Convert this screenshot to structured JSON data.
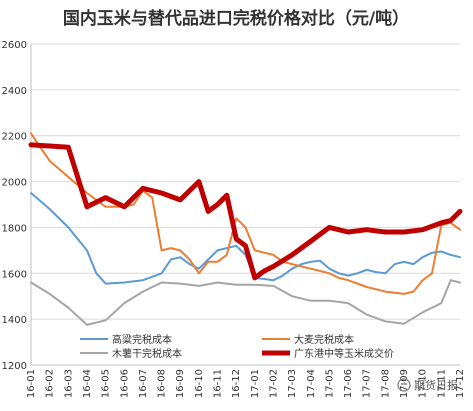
{
  "chart_data": {
    "type": "line",
    "title": "国内玉米与替代品进口完税价格对比（元/吨）",
    "xlabel": "",
    "ylabel": "",
    "ylim": [
      1200,
      2600
    ],
    "yticks": [
      1200,
      1400,
      1600,
      1800,
      2000,
      2200,
      2400,
      2600
    ],
    "grid": true,
    "legend_position": "bottom-inside",
    "categories": [
      "16-01",
      "16-02",
      "16-03",
      "16-04",
      "16-05",
      "16-06",
      "16-07",
      "16-08",
      "16-09",
      "16-10",
      "16-11",
      "16-12",
      "17-01",
      "17-02",
      "17-03",
      "17-04",
      "17-05",
      "17-06",
      "17-07",
      "17-08",
      "17-09",
      "17-10",
      "17-11",
      "17-12"
    ],
    "series": [
      {
        "name": "高粱完税成本",
        "color": "#5b9bd5",
        "width": 2,
        "values": [
          [
            0,
            1950
          ],
          [
            1,
            1880
          ],
          [
            2,
            1800
          ],
          [
            3,
            1700
          ],
          [
            3.5,
            1600
          ],
          [
            4,
            1555
          ],
          [
            5,
            1560
          ],
          [
            6,
            1570
          ],
          [
            7,
            1600
          ],
          [
            7.5,
            1660
          ],
          [
            8,
            1670
          ],
          [
            8.5,
            1640
          ],
          [
            9,
            1620
          ],
          [
            9.5,
            1660
          ],
          [
            10,
            1700
          ],
          [
            11,
            1720
          ],
          [
            11.5,
            1680
          ],
          [
            12,
            1580
          ],
          [
            12.5,
            1575
          ],
          [
            13,
            1570
          ],
          [
            13.5,
            1590
          ],
          [
            14,
            1620
          ],
          [
            14.5,
            1640
          ],
          [
            15,
            1650
          ],
          [
            15.5,
            1655
          ],
          [
            16,
            1620
          ],
          [
            16.5,
            1600
          ],
          [
            17,
            1590
          ],
          [
            17.5,
            1600
          ],
          [
            18,
            1615
          ],
          [
            18.5,
            1605
          ],
          [
            19,
            1600
          ],
          [
            19.5,
            1640
          ],
          [
            20,
            1650
          ],
          [
            20.5,
            1640
          ],
          [
            21,
            1670
          ],
          [
            21.5,
            1690
          ],
          [
            22,
            1695
          ],
          [
            22.5,
            1680
          ],
          [
            23,
            1670
          ]
        ]
      },
      {
        "name": "大麦完税成本",
        "color": "#ed7d31",
        "width": 2,
        "values": [
          [
            0,
            2210
          ],
          [
            0.5,
            2150
          ],
          [
            1,
            2090
          ],
          [
            2,
            2020
          ],
          [
            3,
            1950
          ],
          [
            3.5,
            1920
          ],
          [
            4,
            1890
          ],
          [
            5,
            1890
          ],
          [
            5.5,
            1900
          ],
          [
            6,
            1960
          ],
          [
            6.5,
            1930
          ],
          [
            7,
            1700
          ],
          [
            7.5,
            1710
          ],
          [
            8,
            1700
          ],
          [
            8.5,
            1660
          ],
          [
            9,
            1600
          ],
          [
            9.5,
            1650
          ],
          [
            10,
            1650
          ],
          [
            10.5,
            1680
          ],
          [
            11,
            1840
          ],
          [
            11.5,
            1800
          ],
          [
            12,
            1700
          ],
          [
            12.5,
            1690
          ],
          [
            13,
            1680
          ],
          [
            13.5,
            1650
          ],
          [
            14,
            1640
          ],
          [
            15,
            1620
          ],
          [
            15.5,
            1610
          ],
          [
            16,
            1600
          ],
          [
            16.5,
            1580
          ],
          [
            17,
            1570
          ],
          [
            18,
            1540
          ],
          [
            18.5,
            1530
          ],
          [
            19,
            1520
          ],
          [
            20,
            1510
          ],
          [
            20.5,
            1520
          ],
          [
            21,
            1570
          ],
          [
            21.5,
            1600
          ],
          [
            22,
            1810
          ],
          [
            22.5,
            1820
          ],
          [
            23,
            1790
          ]
        ]
      },
      {
        "name": "木薯干完税成本",
        "color": "#a5a5a5",
        "width": 2,
        "values": [
          [
            0,
            1560
          ],
          [
            1,
            1510
          ],
          [
            2,
            1450
          ],
          [
            3,
            1375
          ],
          [
            4,
            1395
          ],
          [
            5,
            1470
          ],
          [
            6,
            1520
          ],
          [
            7,
            1560
          ],
          [
            8,
            1555
          ],
          [
            9,
            1545
          ],
          [
            10,
            1560
          ],
          [
            11,
            1550
          ],
          [
            12,
            1550
          ],
          [
            13,
            1545
          ],
          [
            14,
            1500
          ],
          [
            15,
            1480
          ],
          [
            16,
            1480
          ],
          [
            17,
            1470
          ],
          [
            18,
            1420
          ],
          [
            19,
            1390
          ],
          [
            20,
            1380
          ],
          [
            21,
            1430
          ],
          [
            22,
            1470
          ],
          [
            22.5,
            1570
          ],
          [
            23,
            1560
          ]
        ]
      },
      {
        "name": "广东港中等玉米成交价",
        "color": "#c00000",
        "width": 5,
        "values": [
          [
            0,
            2160
          ],
          [
            1,
            2155
          ],
          [
            2,
            2150
          ],
          [
            3,
            1890
          ],
          [
            4,
            1930
          ],
          [
            5,
            1890
          ],
          [
            6,
            1970
          ],
          [
            7,
            1950
          ],
          [
            8,
            1920
          ],
          [
            9,
            2000
          ],
          [
            9.5,
            1870
          ],
          [
            10,
            1900
          ],
          [
            10.5,
            1940
          ],
          [
            11,
            1750
          ],
          [
            11.5,
            1720
          ],
          [
            12,
            1580
          ],
          [
            12.5,
            1610
          ],
          [
            13,
            1630
          ],
          [
            14,
            1680
          ],
          [
            15,
            1740
          ],
          [
            16,
            1800
          ],
          [
            17,
            1780
          ],
          [
            18,
            1790
          ],
          [
            19,
            1780
          ],
          [
            20,
            1780
          ],
          [
            21,
            1790
          ],
          [
            22,
            1820
          ],
          [
            22.5,
            1830
          ],
          [
            23,
            1870
          ]
        ]
      }
    ]
  },
  "watermark": "期货日报"
}
